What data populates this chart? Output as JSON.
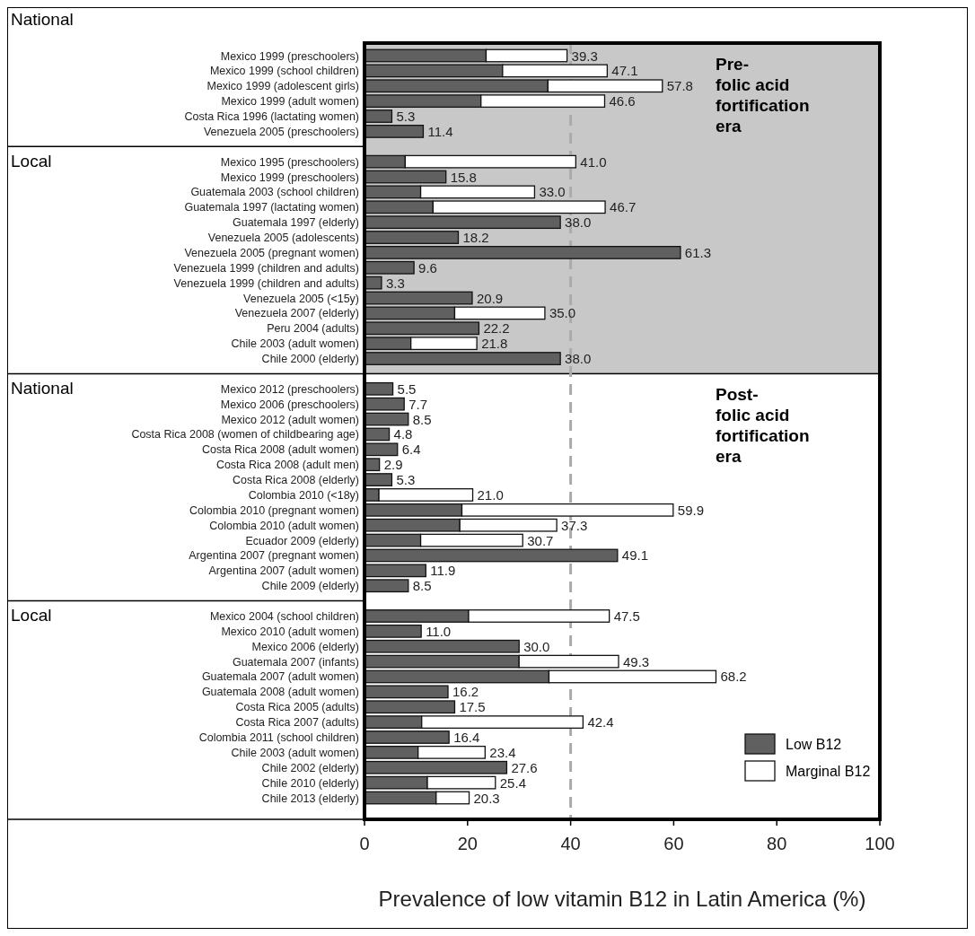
{
  "chart_data": {
    "type": "bar",
    "orientation": "horizontal",
    "stacked": true,
    "xlabel": "Prevalence of low vitamin B12 in Latin America (%)",
    "categories": [
      "Mexico 1999 (preschoolers)",
      "Mexico 1999 (school children)",
      "Mexico 1999 (adolescent girls)",
      "Mexico 1999 (adult women)",
      "Costa Rica 1996 (lactating women)",
      "Venezuela 2005 (preschoolers)",
      null,
      "Mexico 1995 (preschoolers)",
      "Mexico 1999 (preschoolers)",
      "Guatemala 2003 (school children)",
      "Guatemala 1997 (lactating women)",
      "Guatemala 1997 (elderly)",
      "Venezuela 2005 (adolescents)",
      "Venezuela 2005 (pregnant women)",
      "Venezuela 1999 (children and adults)",
      "Venezuela 1999 (children and adults)",
      "Venezuela 2005 (<15y)",
      "Venezuela 2007 (elderly)",
      "Peru 2004 (adults)",
      "Chile 2003 (adult women)",
      "Chile 2000 (elderly)",
      null,
      "Mexico 2012 (preschoolers)",
      "Mexico 2006 (preschoolers)",
      "Mexico 2012 (adult women)",
      "Costa Rica 2008 (women of childbearing age)",
      "Costa Rica 2008 (adult women)",
      "Costa Rica 2008 (adult men)",
      "Costa Rica 2008 (elderly)",
      "Colombia 2010 (<18y)",
      "Colombia 2010 (pregnant women)",
      "Colombia 2010 (adult women)",
      "Ecuador 2009 (elderly)",
      "Argentina 2007 (pregnant women)",
      "Argentina 2007 (adult women)",
      "Chile 2009 (elderly)",
      null,
      "Mexico 2004 (school children)",
      "Mexico 2010 (adult women)",
      "Mexico 2006 (elderly)",
      "Guatemala 2007 (infants)",
      "Guatemala 2007 (adult women)",
      "Guatemala 2008 (adult women)",
      "Costa Rica 2005 (adults)",
      "Costa Rica 2007 (adults)",
      "Colombia 2011 (school children)",
      "Chile 2003 (adult women)",
      "Chile 2002 (elderly)",
      "Chile 2010 (elderly)",
      "Chile 2013 (elderly)"
    ],
    "series": [
      {
        "name": "Low B12",
        "color": "#606060",
        "values": [
          23.6,
          26.8,
          35.6,
          22.6,
          5.3,
          11.4,
          null,
          7.9,
          15.8,
          10.9,
          13.3,
          38.0,
          18.2,
          61.3,
          9.6,
          3.3,
          20.9,
          17.5,
          22.2,
          9.0,
          38.0,
          null,
          5.5,
          7.7,
          8.5,
          4.8,
          6.4,
          2.9,
          5.3,
          2.8,
          18.9,
          18.5,
          10.9,
          49.1,
          11.9,
          8.5,
          null,
          20.2,
          11.0,
          30.0,
          30.0,
          35.8,
          16.2,
          17.5,
          11.1,
          16.4,
          10.4,
          27.6,
          12.2,
          13.9
        ]
      },
      {
        "name": "Marginal B12",
        "color": "#ffffff",
        "values": [
          15.7,
          20.3,
          22.2,
          24.0,
          null,
          null,
          null,
          33.1,
          null,
          22.1,
          33.4,
          null,
          null,
          null,
          null,
          null,
          null,
          17.5,
          null,
          12.8,
          null,
          null,
          null,
          null,
          null,
          null,
          null,
          null,
          null,
          18.2,
          41.0,
          18.8,
          19.8,
          null,
          null,
          null,
          null,
          27.3,
          null,
          null,
          19.3,
          32.4,
          null,
          null,
          31.3,
          null,
          13.0,
          null,
          13.2,
          6.4
        ]
      }
    ],
    "totals": [
      "39.3",
      "47.1",
      "57.8",
      "46.6",
      "5.3",
      "11.4",
      null,
      "41.0",
      "15.8",
      "33.0",
      "46.7",
      "38.0",
      "18.2",
      "61.3",
      "9.6",
      "3.3",
      "20.9",
      "35.0",
      "22.2",
      "21.8",
      "38.0",
      null,
      "5.5",
      "7.7",
      "8.5",
      "4.8",
      "6.4",
      "2.9",
      "5.3",
      "21.0",
      "59.9",
      "37.3",
      "30.7",
      "49.1",
      "11.9",
      "8.5",
      null,
      "47.5",
      "11.0",
      "30.0",
      "49.3",
      "68.2",
      "16.2",
      "17.5",
      "42.4",
      "16.4",
      "23.4",
      "27.6",
      "25.4",
      "20.3"
    ],
    "xlim": [
      0,
      100
    ],
    "xticks": [
      0,
      20,
      40,
      60,
      80,
      100
    ],
    "ref_lines": [
      {
        "axis": "x",
        "value": 40,
        "color": "#aaaaaa",
        "line_style": "dashed"
      }
    ],
    "annotations": [
      "National",
      "Local",
      "National",
      "Local",
      "Pre-folic acid fortification era",
      "Post-folic acid fortification era"
    ],
    "grid": false,
    "legend": "bottom right"
  }
}
